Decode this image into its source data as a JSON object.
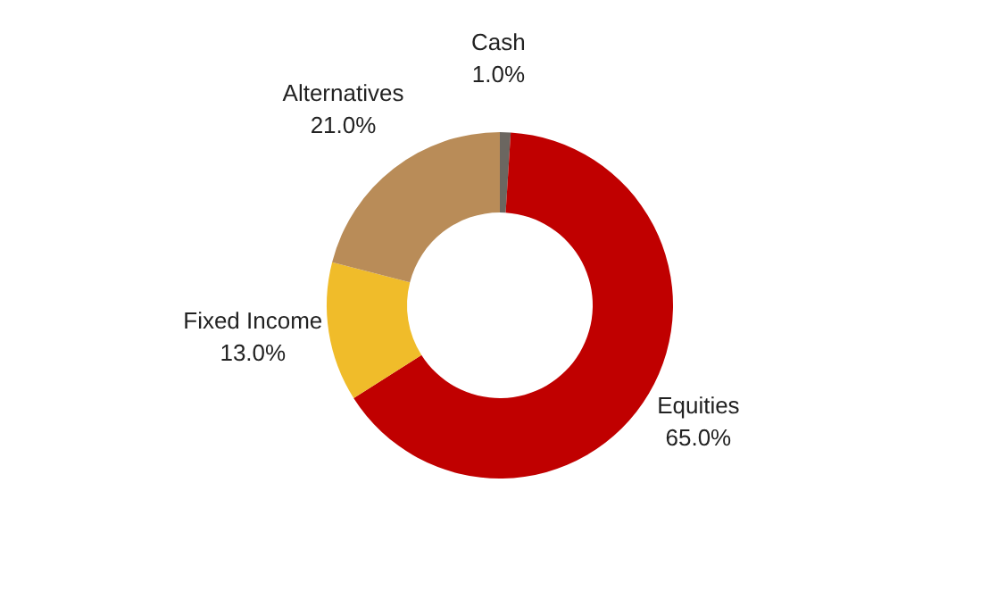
{
  "chart_data": {
    "type": "donut",
    "categories": [
      "Cash",
      "Equities",
      "Fixed Income",
      "Alternatives"
    ],
    "values": [
      1,
      65,
      13,
      21
    ],
    "value_labels": [
      "1.0%",
      "65.0%",
      "13.0%",
      "21.0%"
    ],
    "colors": [
      "#6b6660",
      "#c00000",
      "#f0bc2a",
      "#b98c58"
    ],
    "legend": false
  }
}
